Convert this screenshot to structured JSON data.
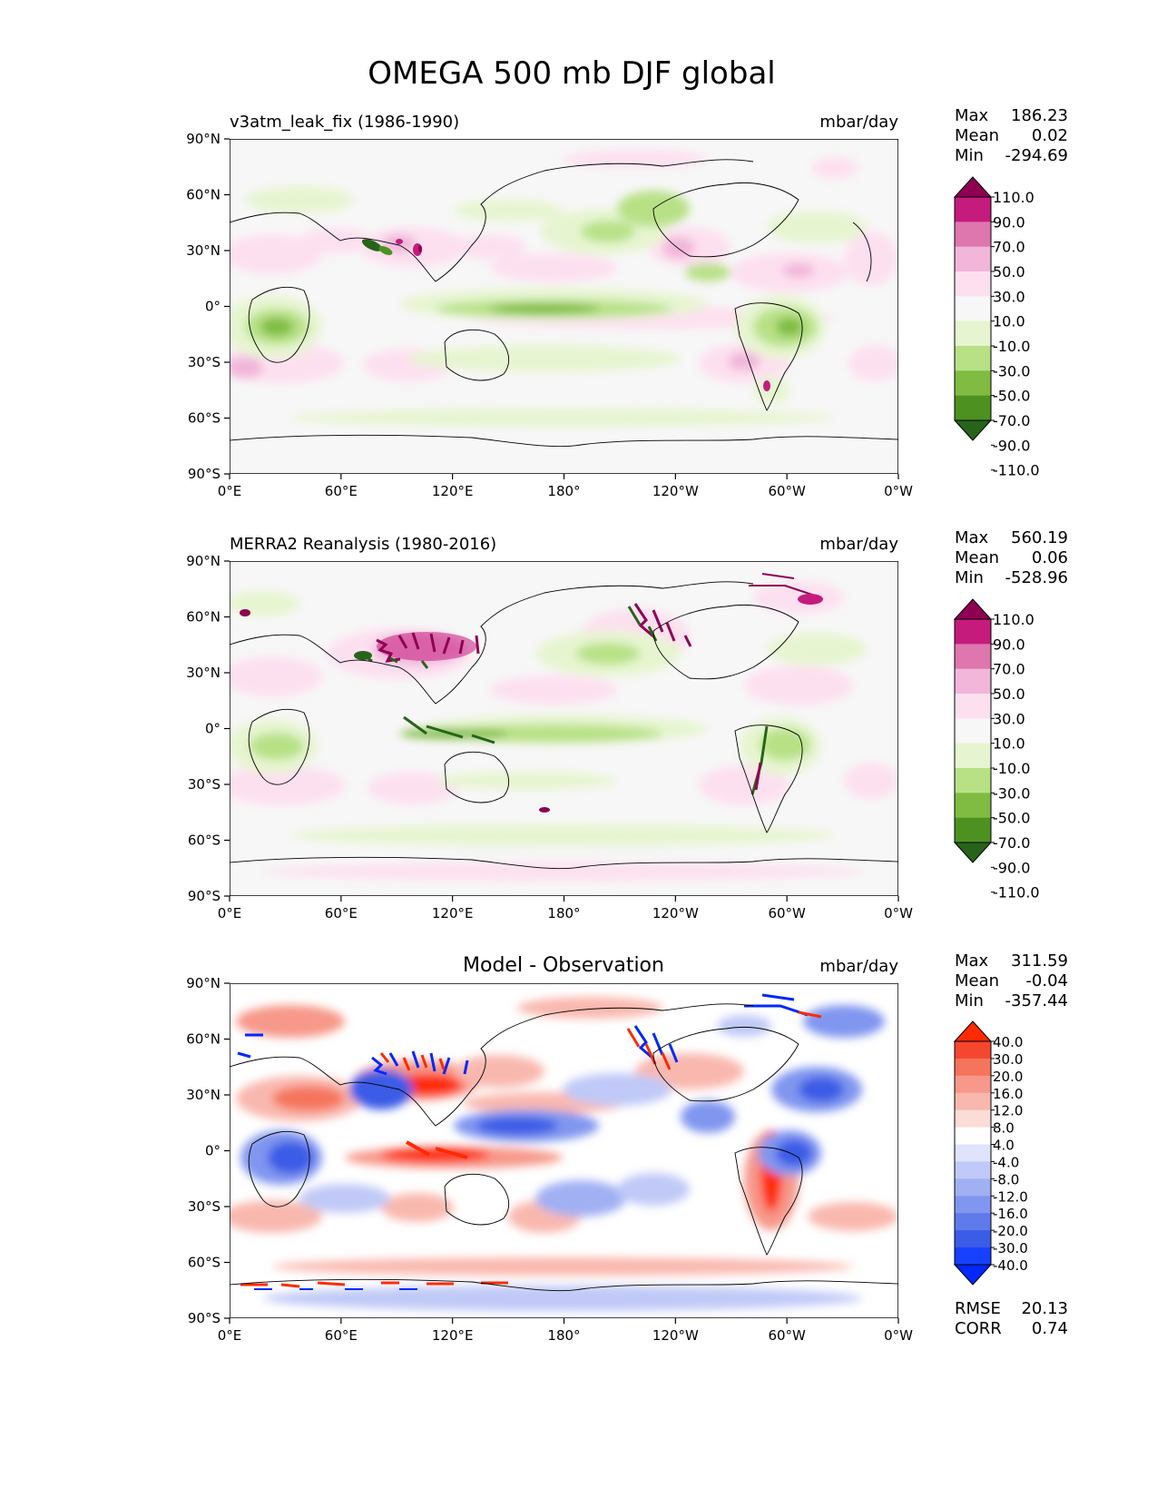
{
  "chart_data": {
    "type": "heatmap",
    "title": "OMEGA 500 mb DJF global",
    "panels": [
      {
        "name": "test",
        "subtitle": "v3atm_leak_fix (1986-1990)",
        "units": "mbar/day",
        "stats": {
          "Max": "186.23",
          "Mean": "0.02",
          "Min": "-294.69"
        },
        "colorbar": {
          "levels": [
            "110.0",
            "90.0",
            "70.0",
            "50.0",
            "30.0",
            "10.0",
            "-10.0",
            "-30.0",
            "-50.0",
            "-70.0",
            "-90.0",
            "-110.0"
          ],
          "colors": [
            "#8e0152",
            "#c51b7d",
            "#de77ae",
            "#f1b6da",
            "#fde0ef",
            "#f7f7f7",
            "#e6f5d0",
            "#b8e186",
            "#7fbc41",
            "#4d9221",
            "#276419"
          ]
        },
        "xticks": [
          "0°E",
          "60°E",
          "120°E",
          "180°",
          "120°W",
          "60°W",
          "0°W"
        ],
        "yticks": [
          "90°N",
          "60°N",
          "30°N",
          "0°",
          "30°S",
          "60°S",
          "90°S"
        ]
      },
      {
        "name": "reference",
        "subtitle": "MERRA2 Reanalysis (1980-2016)",
        "units": "mbar/day",
        "stats": {
          "Max": "560.19",
          "Mean": "0.06",
          "Min": "-528.96"
        },
        "colorbar": {
          "levels": [
            "110.0",
            "90.0",
            "70.0",
            "50.0",
            "30.0",
            "10.0",
            "-10.0",
            "-30.0",
            "-50.0",
            "-70.0",
            "-90.0",
            "-110.0"
          ],
          "colors": [
            "#8e0152",
            "#c51b7d",
            "#de77ae",
            "#f1b6da",
            "#fde0ef",
            "#f7f7f7",
            "#e6f5d0",
            "#b8e186",
            "#7fbc41",
            "#4d9221",
            "#276419"
          ]
        },
        "xticks": [
          "0°E",
          "60°E",
          "120°E",
          "180°",
          "120°W",
          "60°W",
          "0°W"
        ],
        "yticks": [
          "90°N",
          "60°N",
          "30°N",
          "0°",
          "30°S",
          "60°S",
          "90°S"
        ]
      },
      {
        "name": "difference",
        "subtitle": "Model - Observation",
        "units": "mbar/day",
        "stats": {
          "Max": "311.59",
          "Mean": "-0.04",
          "Min": "-357.44"
        },
        "metrics": {
          "RMSE": "20.13",
          "CORR": "0.74"
        },
        "colorbar": {
          "levels": [
            "40.0",
            "30.0",
            "20.0",
            "16.0",
            "12.0",
            "8.0",
            "4.0",
            "-4.0",
            "-8.0",
            "-12.0",
            "-16.0",
            "-20.0",
            "-30.0",
            "-40.0"
          ],
          "colors": [
            "#ff2a00",
            "#f4472e",
            "#f5745c",
            "#f7988a",
            "#f9b8ae",
            "#fcdcd6",
            "#ffffff",
            "#dfe3fb",
            "#c0c9f7",
            "#a0b0f3",
            "#8096ef",
            "#5f7beb",
            "#3a5ce6",
            "#1740ff",
            "#0028ff"
          ]
        },
        "xticks": [
          "0°E",
          "60°E",
          "120°E",
          "180°",
          "120°W",
          "60°W",
          "0°W"
        ],
        "yticks": [
          "90°N",
          "60°N",
          "30°N",
          "0°",
          "30°S",
          "60°S",
          "90°S"
        ]
      }
    ]
  }
}
